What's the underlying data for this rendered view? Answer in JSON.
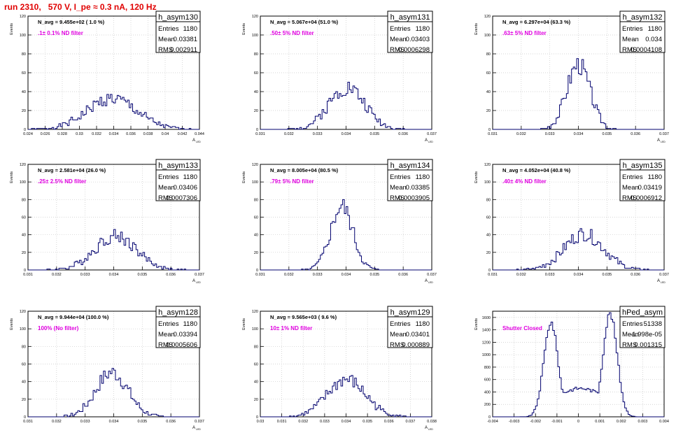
{
  "title": "run 2310,   570 V, I_pe ≈ 0.3 nA, 120 Hz",
  "colors": {
    "title": "#e00000",
    "annotation": "#e000e0",
    "histogram": "#00006e",
    "grid": "#c8c8c8"
  },
  "chart_data": [
    {
      "type": "histogram",
      "name": "h_asym130",
      "navg": "N_avg = 9.455e+02 ( 1.0 %)",
      "filter": ".1± 0.1% ND filter",
      "stats": [
        [
          "Entries",
          "1180"
        ],
        [
          "Mean",
          "0.03381"
        ],
        [
          "RMS",
          "0.002911"
        ]
      ],
      "xlim": [
        0.024,
        0.044
      ],
      "ylim": [
        0,
        120
      ],
      "ylabel": "Events",
      "xlabel": "A",
      "xticks": [
        "0.024",
        "0.026",
        "0.028",
        "0.03",
        "0.032",
        "0.034",
        "0.036",
        "0.038",
        "0.04",
        "0.042",
        "0.044"
      ],
      "yticks": [
        "0",
        "20",
        "40",
        "60",
        "80",
        "100",
        "120"
      ],
      "shape": {
        "type": "gauss",
        "mu": 0.0338,
        "sigma": 0.0029,
        "n": 1180,
        "seed": 1
      }
    },
    {
      "type": "histogram",
      "name": "h_asym131",
      "navg": "N_avg = 5.067e+04 (51.0 %)",
      "filter": ".50± 5% ND filter",
      "stats": [
        [
          "Entries",
          "1180"
        ],
        [
          "Mean",
          "0.03403"
        ],
        [
          "RMS",
          "0.0006298"
        ]
      ],
      "xlim": [
        0.031,
        0.037
      ],
      "ylim": [
        0,
        120
      ],
      "ylabel": "Events",
      "xlabel": "A",
      "xticks": [
        "0.031",
        "0.032",
        "0.033",
        "0.034",
        "0.035",
        "0.036",
        "0.037"
      ],
      "yticks": [
        "0",
        "20",
        "40",
        "60",
        "80",
        "100",
        "120"
      ],
      "shape": {
        "type": "gauss",
        "mu": 0.03403,
        "sigma": 0.00063,
        "n": 1180,
        "seed": 2
      }
    },
    {
      "type": "histogram",
      "name": "h_asym132",
      "navg": "N_avg = 6.297e+04 (63.3 %)",
      "filter": ".63± 5% ND filter",
      "stats": [
        [
          "Entries",
          "1180"
        ],
        [
          "Mean",
          "0.034"
        ],
        [
          "RMS",
          "0.0004108"
        ]
      ],
      "xlim": [
        0.031,
        0.037
      ],
      "ylim": [
        0,
        120
      ],
      "ylabel": "Events",
      "xlabel": "A",
      "xticks": [
        "0.031",
        "0.032",
        "0.033",
        "0.034",
        "0.035",
        "0.036",
        "0.037"
      ],
      "yticks": [
        "0",
        "20",
        "40",
        "60",
        "80",
        "100",
        "120"
      ],
      "shape": {
        "type": "gauss",
        "mu": 0.034,
        "sigma": 0.00041,
        "n": 1180,
        "seed": 3
      }
    },
    {
      "type": "histogram",
      "name": "h_asym133",
      "navg": "N_avg = 2.581e+04 (26.0 %)",
      "filter": ".25± 2.5% ND filter",
      "stats": [
        [
          "Entries",
          "1180"
        ],
        [
          "Mean",
          "0.03406"
        ],
        [
          "RMS",
          "0.0007306"
        ]
      ],
      "xlim": [
        0.031,
        0.037
      ],
      "ylim": [
        0,
        120
      ],
      "ylabel": "Events",
      "xlabel": "A",
      "xticks": [
        "0.031",
        "0.032",
        "0.033",
        "0.034",
        "0.035",
        "0.036",
        "0.037"
      ],
      "yticks": [
        "0",
        "20",
        "40",
        "60",
        "80",
        "100",
        "120"
      ],
      "shape": {
        "type": "gauss",
        "mu": 0.03406,
        "sigma": 0.00073,
        "n": 1180,
        "seed": 4
      }
    },
    {
      "type": "histogram",
      "name": "h_asym134",
      "navg": "N_avg = 8.005e+04 (80.5 %)",
      "filter": ".79± 5% ND filter",
      "stats": [
        [
          "Entries",
          "1180"
        ],
        [
          "Mean",
          "0.03385"
        ],
        [
          "RMS",
          "0.0003905"
        ]
      ],
      "xlim": [
        0.031,
        0.037
      ],
      "ylim": [
        0,
        120
      ],
      "ylabel": "Events",
      "xlabel": "A",
      "xticks": [
        "0.031",
        "0.032",
        "0.033",
        "0.034",
        "0.035",
        "0.036",
        "0.037"
      ],
      "yticks": [
        "0",
        "20",
        "40",
        "60",
        "80",
        "100",
        "120"
      ],
      "shape": {
        "type": "gauss",
        "mu": 0.03385,
        "sigma": 0.00039,
        "n": 1180,
        "seed": 5
      }
    },
    {
      "type": "histogram",
      "name": "h_asym135",
      "navg": "N_avg = 4.052e+04 (40.8 %)",
      "filter": ".40± 4% ND filter",
      "stats": [
        [
          "Entries",
          "1180"
        ],
        [
          "Mean",
          "0.03419"
        ],
        [
          "RMS",
          "0.0006912"
        ]
      ],
      "xlim": [
        0.031,
        0.037
      ],
      "ylim": [
        0,
        120
      ],
      "ylabel": "Events",
      "xlabel": "A",
      "xticks": [
        "0.031",
        "0.032",
        "0.033",
        "0.034",
        "0.035",
        "0.036",
        "0.037"
      ],
      "yticks": [
        "0",
        "20",
        "40",
        "60",
        "80",
        "100",
        "120"
      ],
      "shape": {
        "type": "gauss",
        "mu": 0.03419,
        "sigma": 0.00069,
        "n": 1180,
        "seed": 6
      }
    },
    {
      "type": "histogram",
      "name": "h_asym128",
      "navg": "N_avg = 9.944e+04 (100.0 %)",
      "filter": "100% (No filter)",
      "stats": [
        [
          "Entries",
          "1180"
        ],
        [
          "Mean",
          "0.03394"
        ],
        [
          "RMS",
          "0.0005606"
        ]
      ],
      "xlim": [
        0.031,
        0.037
      ],
      "ylim": [
        0,
        120
      ],
      "ylabel": "Events",
      "xlabel": "A",
      "xticks": [
        "0.031",
        "0.032",
        "0.033",
        "0.034",
        "0.035",
        "0.036",
        "0.037"
      ],
      "yticks": [
        "0",
        "20",
        "40",
        "60",
        "80",
        "100",
        "120"
      ],
      "shape": {
        "type": "gauss",
        "mu": 0.03394,
        "sigma": 0.00056,
        "n": 1180,
        "seed": 7
      }
    },
    {
      "type": "histogram",
      "name": "h_asym129",
      "navg": "N_avg = 9.565e+03 ( 9.6 %)",
      "filter": "10± 1% ND filter",
      "stats": [
        [
          "Entries",
          "1180"
        ],
        [
          "Mean",
          "0.03401"
        ],
        [
          "RMS",
          "0.000889"
        ]
      ],
      "xlim": [
        0.03,
        0.038
      ],
      "ylim": [
        0,
        120
      ],
      "ylabel": "Events",
      "xlabel": "A",
      "xticks": [
        "0.03",
        "0.031",
        "0.032",
        "0.033",
        "0.034",
        "0.035",
        "0.036",
        "0.037",
        "0.038"
      ],
      "yticks": [
        "0",
        "20",
        "40",
        "60",
        "80",
        "100",
        "120"
      ],
      "shape": {
        "type": "gauss",
        "mu": 0.03401,
        "sigma": 0.00089,
        "n": 1180,
        "seed": 8
      }
    },
    {
      "type": "histogram",
      "name": "hPed_asym",
      "navg": "",
      "filter": "Shutter Closed",
      "stats": [
        [
          "Entries",
          "51338"
        ],
        [
          "Mean",
          "-1.998e-05"
        ],
        [
          "RMS",
          "0.001315"
        ]
      ],
      "xlim": [
        -0.004,
        0.004
      ],
      "ylim": [
        0,
        1700
      ],
      "ylabel": "Events",
      "xlabel": "",
      "xticks": [
        "-0.004",
        "-0.003",
        "-0.002",
        "-0.001",
        "0",
        "0.001",
        "0.002",
        "0.003",
        "0.004"
      ],
      "yticks": [
        "0",
        "200",
        "400",
        "600",
        "800",
        "1000",
        "1200",
        "1400",
        "1600"
      ],
      "shape": {
        "type": "bimodal",
        "mu1": -0.00128,
        "mu2": 0.00148,
        "sigma": 0.00033,
        "peak1": 1520,
        "peak2": 1660,
        "base": 400,
        "seed": 9
      }
    }
  ]
}
